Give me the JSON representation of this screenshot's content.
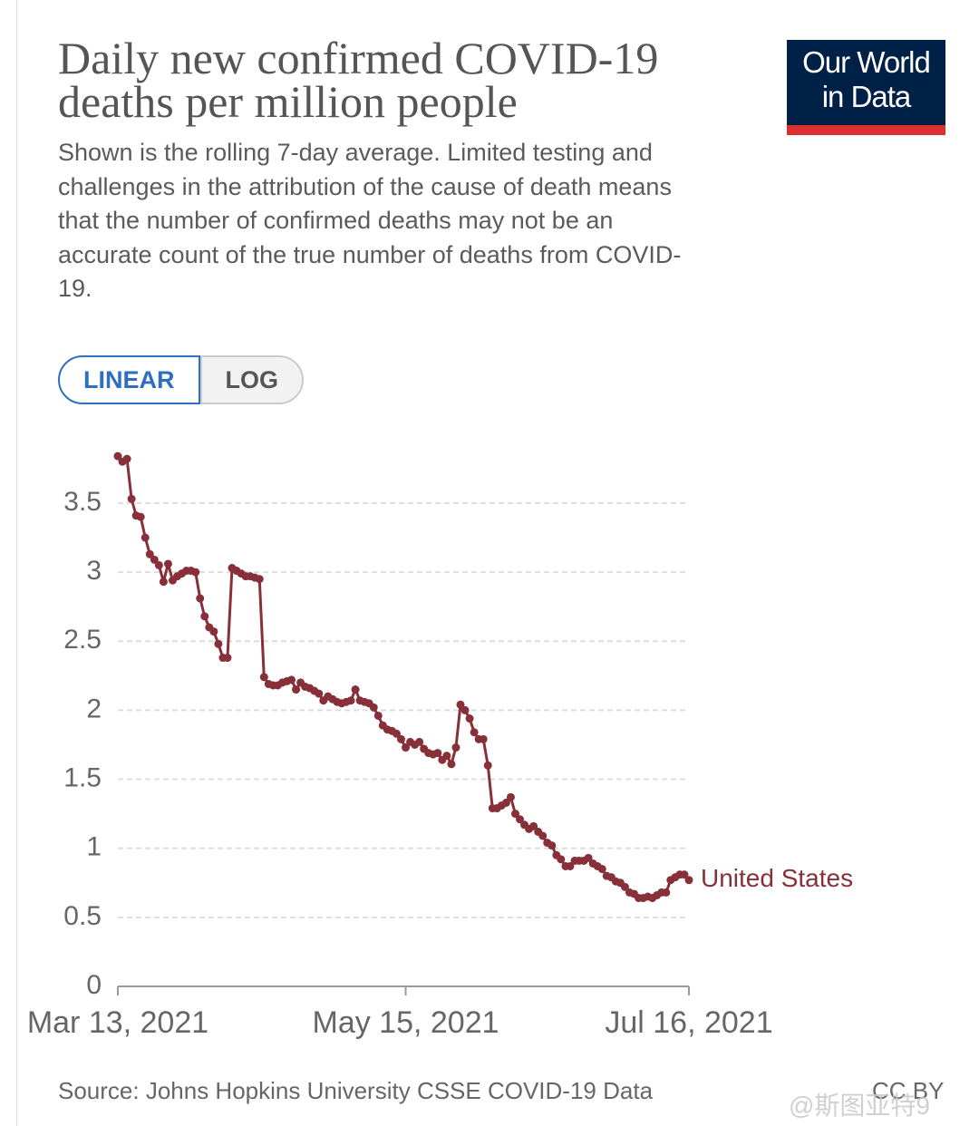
{
  "chart_data": {
    "type": "line",
    "title": "Daily new confirmed COVID-19 deaths per million people",
    "subtitle": "Shown is the rolling 7-day average. Limited testing and challenges in the attribution of the cause of death means that the number of confirmed deaths may not be an accurate count of the true number of deaths from COVID-19.",
    "logo": [
      "Our World",
      "in Data"
    ],
    "scale_buttons": [
      "LINEAR",
      "LOG"
    ],
    "log_scale": false,
    "grid": true,
    "source": "Source: Johns Hopkins University CSSE COVID-19 Data",
    "license": "CC BY",
    "x": [
      "2021-03-13",
      "2021-03-14",
      "2021-03-15",
      "2021-03-16",
      "2021-03-17",
      "2021-03-18",
      "2021-03-19",
      "2021-03-20",
      "2021-03-21",
      "2021-03-22",
      "2021-03-23",
      "2021-03-24",
      "2021-03-25",
      "2021-03-26",
      "2021-03-27",
      "2021-03-28",
      "2021-03-29",
      "2021-03-30",
      "2021-03-31",
      "2021-04-01",
      "2021-04-02",
      "2021-04-03",
      "2021-04-04",
      "2021-04-05",
      "2021-04-06",
      "2021-04-07",
      "2021-04-08",
      "2021-04-09",
      "2021-04-10",
      "2021-04-11",
      "2021-04-12",
      "2021-04-13",
      "2021-04-14",
      "2021-04-15",
      "2021-04-16",
      "2021-04-17",
      "2021-04-18",
      "2021-04-19",
      "2021-04-20",
      "2021-04-21",
      "2021-04-22",
      "2021-04-23",
      "2021-04-24",
      "2021-04-25",
      "2021-04-26",
      "2021-04-27",
      "2021-04-28",
      "2021-04-29",
      "2021-04-30",
      "2021-05-01",
      "2021-05-02",
      "2021-05-03",
      "2021-05-04",
      "2021-05-05",
      "2021-05-06",
      "2021-05-07",
      "2021-05-08",
      "2021-05-09",
      "2021-05-10",
      "2021-05-11",
      "2021-05-12",
      "2021-05-13",
      "2021-05-14",
      "2021-05-15",
      "2021-05-16",
      "2021-05-17",
      "2021-05-18",
      "2021-05-19",
      "2021-05-20",
      "2021-05-21",
      "2021-05-22",
      "2021-05-23",
      "2021-05-24",
      "2021-05-25",
      "2021-05-26",
      "2021-05-27",
      "2021-05-28",
      "2021-05-29",
      "2021-05-30",
      "2021-05-31",
      "2021-06-01",
      "2021-06-02",
      "2021-06-03",
      "2021-06-04",
      "2021-06-05",
      "2021-06-06",
      "2021-06-07",
      "2021-06-08",
      "2021-06-09",
      "2021-06-10",
      "2021-06-11",
      "2021-06-12",
      "2021-06-13",
      "2021-06-14",
      "2021-06-15",
      "2021-06-16",
      "2021-06-17",
      "2021-06-18",
      "2021-06-19",
      "2021-06-20",
      "2021-06-21",
      "2021-06-22",
      "2021-06-23",
      "2021-06-24",
      "2021-06-25",
      "2021-06-26",
      "2021-06-27",
      "2021-06-28",
      "2021-06-29",
      "2021-06-30",
      "2021-07-01",
      "2021-07-02",
      "2021-07-03",
      "2021-07-04",
      "2021-07-05",
      "2021-07-06",
      "2021-07-07",
      "2021-07-08",
      "2021-07-09",
      "2021-07-10",
      "2021-07-11",
      "2021-07-12",
      "2021-07-13",
      "2021-07-14",
      "2021-07-15",
      "2021-07-16"
    ],
    "series": [
      {
        "name": "United States",
        "color": "#883039",
        "values": [
          3.84,
          3.8,
          3.82,
          3.53,
          3.41,
          3.4,
          3.25,
          3.13,
          3.09,
          3.05,
          2.93,
          3.06,
          2.94,
          2.97,
          2.99,
          3.01,
          3.01,
          3.0,
          2.81,
          2.68,
          2.6,
          2.57,
          2.48,
          2.38,
          2.38,
          3.03,
          3.01,
          2.99,
          2.97,
          2.97,
          2.96,
          2.95,
          2.24,
          2.19,
          2.18,
          2.18,
          2.2,
          2.21,
          2.22,
          2.15,
          2.2,
          2.17,
          2.16,
          2.14,
          2.12,
          2.07,
          2.1,
          2.08,
          2.06,
          2.05,
          2.06,
          2.07,
          2.15,
          2.07,
          2.06,
          2.05,
          2.02,
          1.96,
          1.89,
          1.86,
          1.85,
          1.83,
          1.79,
          1.73,
          1.77,
          1.75,
          1.77,
          1.72,
          1.69,
          1.68,
          1.69,
          1.64,
          1.67,
          1.61,
          1.73,
          2.04,
          2.0,
          1.94,
          1.84,
          1.79,
          1.79,
          1.6,
          1.29,
          1.29,
          1.31,
          1.33,
          1.37,
          1.25,
          1.21,
          1.17,
          1.14,
          1.16,
          1.12,
          1.09,
          1.04,
          1.02,
          0.95,
          0.92,
          0.87,
          0.87,
          0.91,
          0.91,
          0.91,
          0.93,
          0.89,
          0.87,
          0.85,
          0.8,
          0.79,
          0.76,
          0.75,
          0.72,
          0.68,
          0.67,
          0.64,
          0.64,
          0.65,
          0.64,
          0.66,
          0.68,
          0.68,
          0.77,
          0.79,
          0.81,
          0.81,
          0.77
        ]
      }
    ],
    "xlim": [
      "2021-03-13",
      "2021-07-16"
    ],
    "xticks": [
      {
        "value": "2021-03-13",
        "label": "Mar 13, 2021"
      },
      {
        "value": "2021-05-15",
        "label": "May 15, 2021"
      },
      {
        "value": "2021-07-16",
        "label": "Jul 16, 2021"
      }
    ],
    "ylim": [
      0,
      3.9
    ],
    "yticks": [
      0,
      0.5,
      1,
      1.5,
      2,
      2.5,
      3,
      3.5
    ]
  },
  "watermark": "@斯图亚特9"
}
